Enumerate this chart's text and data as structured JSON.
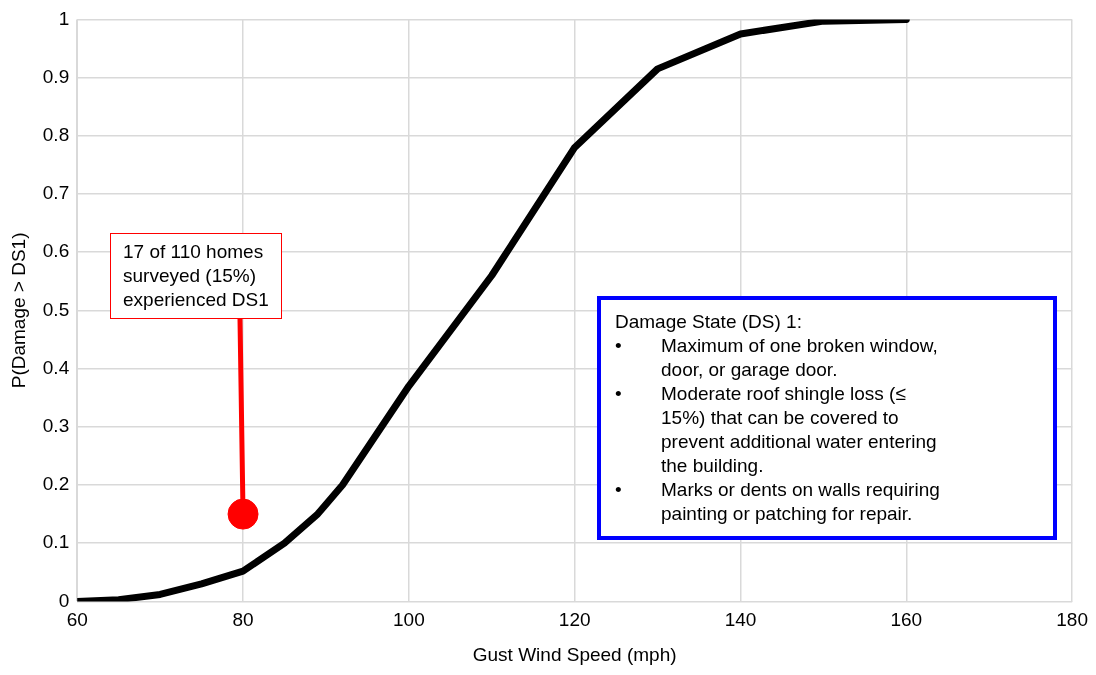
{
  "chart_data": {
    "type": "line",
    "xlabel": "Gust Wind Speed (mph)",
    "ylabel": "P(Damage > DS1)",
    "xlim": [
      60,
      180
    ],
    "xticks": [
      60,
      80,
      100,
      120,
      140,
      160,
      180
    ],
    "ylim": [
      0,
      1
    ],
    "yticks": [
      0,
      0.1,
      0.2,
      0.3,
      0.4,
      0.5,
      0.6,
      0.7,
      0.8,
      0.9,
      1
    ],
    "grid": true,
    "legend": false,
    "marker": "none",
    "line_style": "solid",
    "series": [
      {
        "color": "#000000",
        "x": [
          60,
          65,
          70,
          75,
          80,
          85,
          89,
          92,
          100,
          110,
          120,
          130,
          140,
          150,
          160
        ],
        "values": [
          0,
          0.003,
          0.012,
          0.03,
          0.052,
          0.1,
          0.15,
          0.2,
          0.37,
          0.56,
          0.78,
          0.915,
          0.975,
          0.997,
          1
        ]
      },
      {
        "type": "scatter",
        "color": "#ff0000",
        "marker": "circle",
        "x": [
          80
        ],
        "values": [
          0.15
        ]
      }
    ],
    "annotations": [
      {
        "text": "17 of 110 homes\nsurveyed (15%)\nexperienced DS1",
        "x": 80,
        "y": 0.15
      },
      "Damage State (DS) 1:\n• Maximum of one broken window,\ndoor, or garage door.\n• Moderate roof shingle loss (≤\n15%) that can be covered to\nprevent additional water entering\nthe building.\n• Marks or dents on walls requiring\npainting or patching for repair."
    ]
  }
}
